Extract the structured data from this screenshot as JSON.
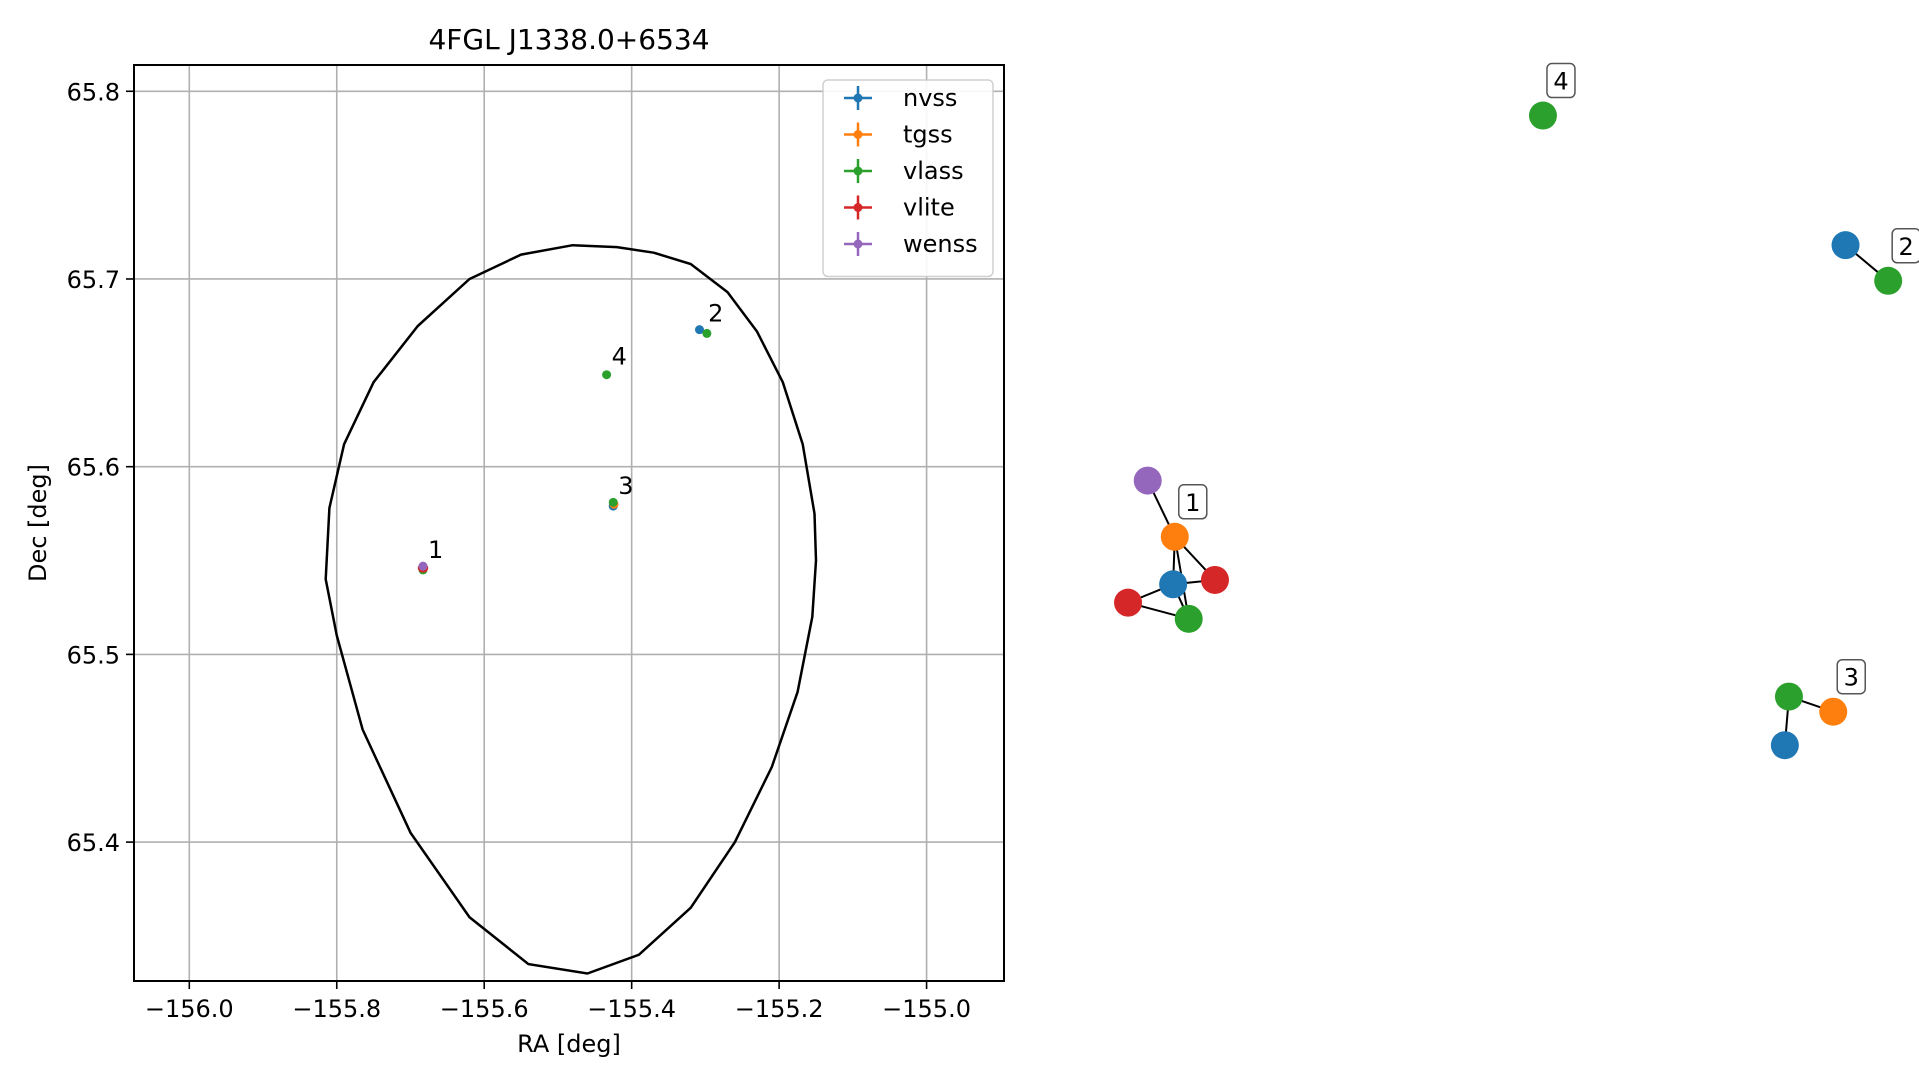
{
  "chart_data": [
    {
      "type": "scatter",
      "title": "4FGL J1338.0+6534",
      "xlabel": "RA [deg]",
      "ylabel": "Dec [deg]",
      "xlim": [
        -156.075,
        -154.895
      ],
      "ylim": [
        65.326,
        65.814
      ],
      "xticks": [
        -156.0,
        -155.8,
        -155.6,
        -155.4,
        -155.2,
        -155.0
      ],
      "xtick_labels": [
        "−156.0",
        "−155.8",
        "−155.6",
        "−155.4",
        "−155.2",
        "−155.0"
      ],
      "yticks": [
        65.4,
        65.5,
        65.6,
        65.7,
        65.8
      ],
      "ytick_labels": [
        "65.4",
        "65.5",
        "65.6",
        "65.7",
        "65.8"
      ],
      "grid": true,
      "legend_position": "top-right",
      "series": [
        {
          "name": "nvss",
          "color": "#1f77b4",
          "points": [
            [
              -155.683,
              65.546
            ],
            [
              -155.308,
              65.673
            ],
            [
              -155.425,
              65.579
            ]
          ]
        },
        {
          "name": "tgss",
          "color": "#ff7f0e",
          "points": [
            [
              -155.683,
              65.546
            ],
            [
              -155.424,
              65.58
            ]
          ]
        },
        {
          "name": "vlass",
          "color": "#2ca02c",
          "points": [
            [
              -155.683,
              65.545
            ],
            [
              -155.298,
              65.671
            ],
            [
              -155.425,
              65.581
            ],
            [
              -155.434,
              65.649
            ]
          ]
        },
        {
          "name": "vlite",
          "color": "#d62728",
          "points": [
            [
              -155.684,
              65.546
            ],
            [
              -155.682,
              65.546
            ]
          ]
        },
        {
          "name": "wenss",
          "color": "#9467bd",
          "points": [
            [
              -155.683,
              65.547
            ]
          ]
        }
      ],
      "annotations": [
        {
          "text": "1",
          "x": -155.683,
          "y": 65.546
        },
        {
          "text": "2",
          "x": -155.303,
          "y": 65.672
        },
        {
          "text": "3",
          "x": -155.425,
          "y": 65.58
        },
        {
          "text": "4",
          "x": -155.434,
          "y": 65.649
        }
      ],
      "ellipse": {
        "center": [
          -155.495,
          65.569
        ],
        "points_note": "error ellipse outline",
        "outline": [
          [
            -155.37,
            65.714
          ],
          [
            -155.32,
            65.708
          ],
          [
            -155.27,
            65.693
          ],
          [
            -155.23,
            65.672
          ],
          [
            -155.195,
            65.645
          ],
          [
            -155.168,
            65.612
          ],
          [
            -155.152,
            65.575
          ],
          [
            -155.15,
            65.55
          ],
          [
            -155.155,
            65.52
          ],
          [
            -155.175,
            65.48
          ],
          [
            -155.21,
            65.44
          ],
          [
            -155.26,
            65.4
          ],
          [
            -155.32,
            65.365
          ],
          [
            -155.39,
            65.34
          ],
          [
            -155.46,
            65.33
          ],
          [
            -155.54,
            65.335
          ],
          [
            -155.62,
            65.36
          ],
          [
            -155.7,
            65.405
          ],
          [
            -155.765,
            65.46
          ],
          [
            -155.8,
            65.51
          ],
          [
            -155.815,
            65.54
          ],
          [
            -155.81,
            65.578
          ],
          [
            -155.79,
            65.612
          ],
          [
            -155.75,
            65.645
          ],
          [
            -155.69,
            65.675
          ],
          [
            -155.62,
            65.7
          ],
          [
            -155.55,
            65.713
          ],
          [
            -155.48,
            65.718
          ],
          [
            -155.42,
            65.717
          ],
          [
            -155.37,
            65.714
          ]
        ]
      }
    },
    {
      "type": "network",
      "clusters": [
        {
          "label": "1",
          "nodes": [
            {
              "id": "w",
              "catalog": "wenss",
              "color": "#9467bd",
              "pos": [
                0.046,
                0.445
              ]
            },
            {
              "id": "t",
              "catalog": "tgss",
              "color": "#ff7f0e",
              "pos": [
                0.079,
                0.497
              ]
            },
            {
              "id": "n",
              "catalog": "nvss",
              "color": "#1f77b4",
              "pos": [
                0.077,
                0.541
              ]
            },
            {
              "id": "r1",
              "catalog": "vlite",
              "color": "#d62728",
              "pos": [
                0.022,
                0.558
              ]
            },
            {
              "id": "r2",
              "catalog": "vlite",
              "color": "#d62728",
              "pos": [
                0.128,
                0.537
              ]
            },
            {
              "id": "g",
              "catalog": "vlass",
              "color": "#2ca02c",
              "pos": [
                0.096,
                0.573
              ]
            }
          ],
          "edges": [
            [
              "w",
              "t"
            ],
            [
              "t",
              "n"
            ],
            [
              "t",
              "g"
            ],
            [
              "t",
              "r2"
            ],
            [
              "n",
              "r1"
            ],
            [
              "n",
              "r2"
            ],
            [
              "n",
              "g"
            ],
            [
              "r1",
              "g"
            ]
          ]
        },
        {
          "label": "2",
          "nodes": [
            {
              "id": "n",
              "catalog": "nvss",
              "color": "#1f77b4",
              "pos": [
                0.897,
                0.227
              ]
            },
            {
              "id": "g",
              "catalog": "vlass",
              "color": "#2ca02c",
              "pos": [
                0.949,
                0.26
              ]
            }
          ],
          "edges": [
            [
              "n",
              "g"
            ]
          ]
        },
        {
          "label": "3",
          "nodes": [
            {
              "id": "g",
              "catalog": "vlass",
              "color": "#2ca02c",
              "pos": [
                0.828,
                0.645
              ]
            },
            {
              "id": "t",
              "catalog": "tgss",
              "color": "#ff7f0e",
              "pos": [
                0.882,
                0.659
              ]
            },
            {
              "id": "n",
              "catalog": "nvss",
              "color": "#1f77b4",
              "pos": [
                0.823,
                0.69
              ]
            }
          ],
          "edges": [
            [
              "g",
              "t"
            ],
            [
              "g",
              "n"
            ]
          ]
        },
        {
          "label": "4",
          "nodes": [
            {
              "id": "g",
              "catalog": "vlass",
              "color": "#2ca02c",
              "pos": [
                0.528,
                0.107
              ]
            }
          ],
          "edges": []
        }
      ]
    }
  ]
}
